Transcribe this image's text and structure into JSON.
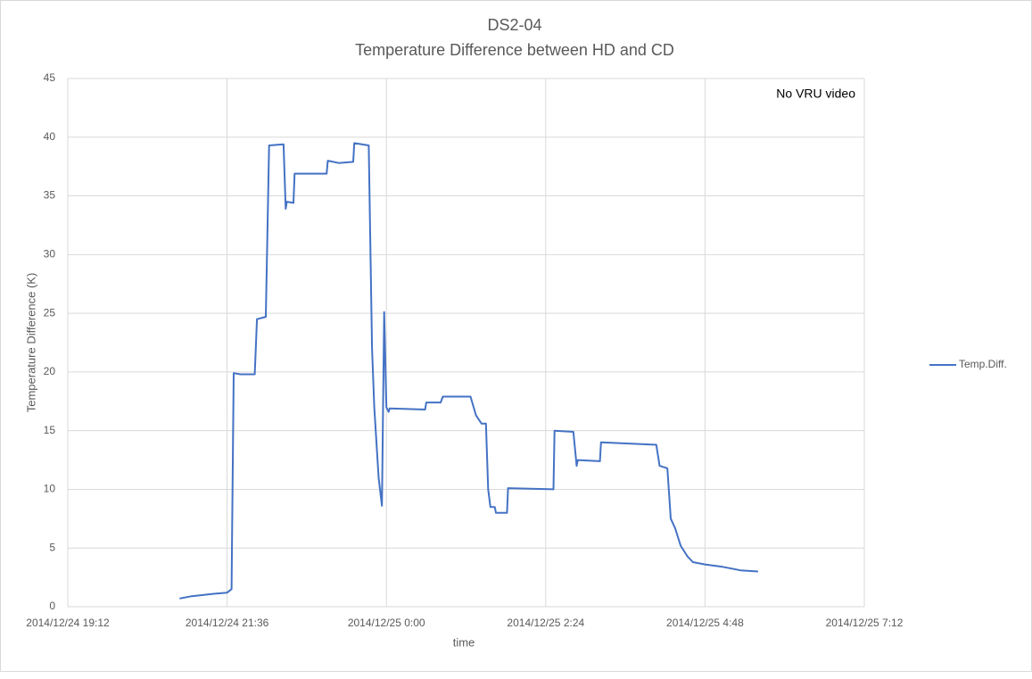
{
  "chart_data": {
    "type": "line",
    "title": "DS2-04",
    "subtitle": "Temperature Difference between HD and CD",
    "x_label": "time",
    "y_label": "Temperature Difference (K)",
    "annotation": "No VRU video",
    "x": [
      "2014/12/24 20:53",
      "2014/12/24 21:04",
      "2014/12/24 21:24",
      "2014/12/24 21:36",
      "2014/12/24 21:40",
      "2014/12/24 21:42",
      "2014/12/24 21:48",
      "2014/12/24 22:01",
      "2014/12/24 22:03",
      "2014/12/24 22:11",
      "2014/12/24 22:14",
      "2014/12/24 22:27",
      "2014/12/24 22:29",
      "2014/12/24 22:30",
      "2014/12/24 22:36",
      "2014/12/24 22:37",
      "2014/12/24 22:49",
      "2014/12/24 23:06",
      "2014/12/24 23:07",
      "2014/12/24 23:17",
      "2014/12/24 23:30",
      "2014/12/24 23:31",
      "2014/12/24 23:44",
      "2014/12/24 23:47",
      "2014/12/24 23:49",
      "2014/12/24 23:53",
      "2014/12/24 23:56",
      "2014/12/24 23:58",
      "2014/12/25 0:00",
      "2014/12/25 0:02",
      "2014/12/25 0:03",
      "2014/12/25 0:35",
      "2014/12/25 0:36",
      "2014/12/25 0:49",
      "2014/12/25 0:51",
      "2014/12/25 1:16",
      "2014/12/25 1:21",
      "2014/12/25 1:26",
      "2014/12/25 1:30",
      "2014/12/25 1:32",
      "2014/12/25 1:34",
      "2014/12/25 1:38",
      "2014/12/25 1:39",
      "2014/12/25 1:49",
      "2014/12/25 1:50",
      "2014/12/25 2:31",
      "2014/12/25 2:32",
      "2014/12/25 2:49",
      "2014/12/25 2:52",
      "2014/12/25 2:53",
      "2014/12/25 3:13",
      "2014/12/25 3:14",
      "2014/12/25 3:39",
      "2014/12/25 4:04",
      "2014/12/25 4:07",
      "2014/12/25 4:14",
      "2014/12/25 4:17",
      "2014/12/25 4:21",
      "2014/12/25 4:26",
      "2014/12/25 4:32",
      "2014/12/25 4:37",
      "2014/12/25 4:48",
      "2014/12/25 5:04",
      "2014/12/25 5:20",
      "2014/12/25 5:36"
    ],
    "series": [
      {
        "name": "Temp.Diff.",
        "color": "#4472c4",
        "values": [
          0.7,
          0.9,
          1.1,
          1.2,
          1.5,
          19.9,
          19.8,
          19.8,
          24.5,
          24.7,
          39.3,
          39.4,
          33.9,
          34.5,
          34.4,
          36.9,
          36.9,
          36.9,
          38.0,
          37.8,
          37.9,
          39.5,
          39.3,
          22,
          17,
          11,
          8.6,
          25.1,
          17,
          16.6,
          16.9,
          16.8,
          17.4,
          17.4,
          17.9,
          17.9,
          16.3,
          15.6,
          15.6,
          10,
          8.5,
          8.5,
          8.0,
          8.0,
          10.1,
          10.0,
          15.0,
          14.9,
          12.0,
          12.5,
          12.4,
          14.0,
          13.9,
          13.8,
          12.0,
          11.8,
          7.5,
          6.7,
          5.2,
          4.3,
          3.8,
          3.6,
          3.4,
          3.1,
          3.0
        ]
      }
    ],
    "xlim": [
      "2014/12/24 19:12",
      "2014/12/25 7:12"
    ],
    "xticks": [
      "2014/12/24 19:12",
      "2014/12/24 21:36",
      "2014/12/25 0:00",
      "2014/12/25 2:24",
      "2014/12/25 4:48",
      "2014/12/25 7:12"
    ],
    "ylim": [
      0,
      45
    ],
    "yticks": [
      0,
      5,
      10,
      15,
      20,
      25,
      30,
      35,
      40,
      45
    ],
    "grid": true,
    "legend": "right"
  }
}
